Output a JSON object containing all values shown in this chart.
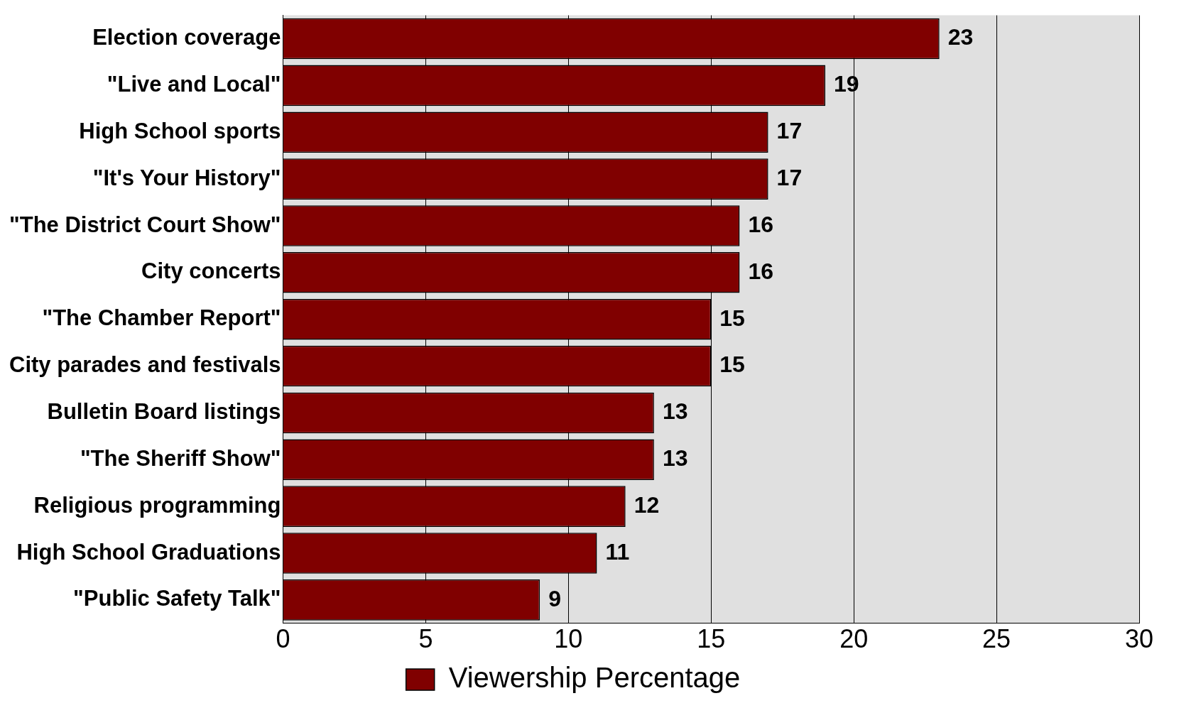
{
  "chart_data": {
    "type": "bar",
    "orientation": "horizontal",
    "categories": [
      "Election coverage",
      "\"Live and Local\"",
      "High School sports",
      "\"It's Your History\"",
      "\"The District Court Show\"",
      "City concerts",
      "\"The Chamber Report\"",
      "City parades and festivals",
      "Bulletin Board listings",
      "\"The Sheriff Show\"",
      "Religious programming",
      "High School Graduations",
      "\"Public Safety Talk\""
    ],
    "series": [
      {
        "name": "Viewership Percentage",
        "color": "#800000",
        "values": [
          23,
          19,
          17,
          17,
          16,
          16,
          15,
          15,
          13,
          13,
          12,
          11,
          9
        ]
      }
    ],
    "xlim": [
      0,
      30
    ],
    "xticks": [
      0,
      5,
      10,
      15,
      20,
      25,
      30
    ],
    "grid": "x",
    "legend": "bottom",
    "data_labels": true
  }
}
